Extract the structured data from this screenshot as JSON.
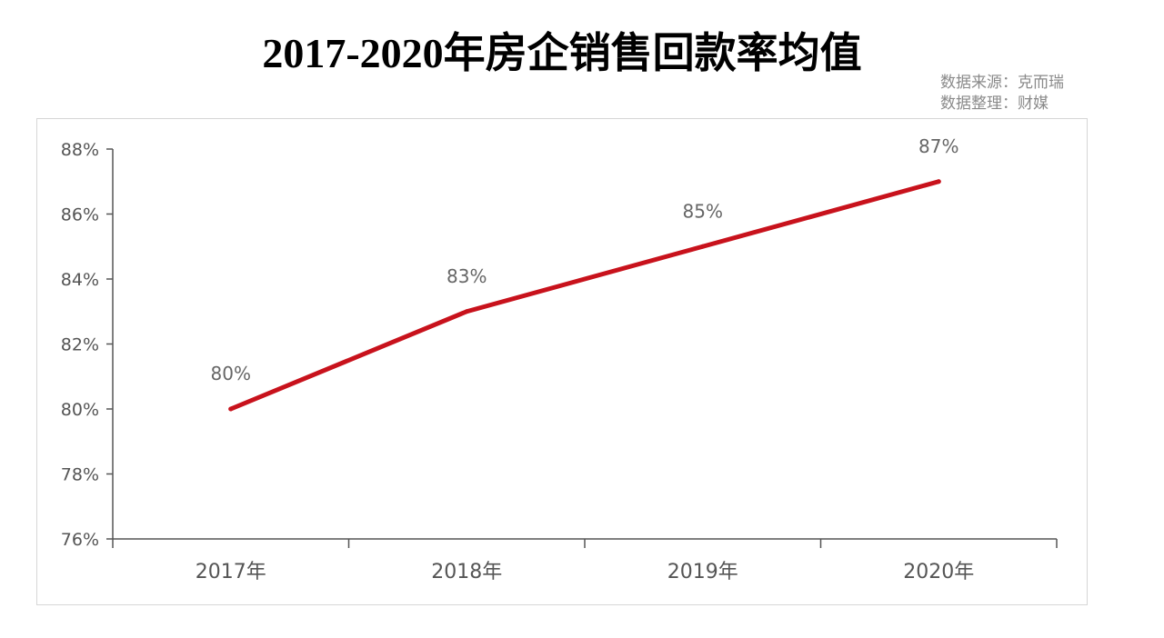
{
  "title": "2017-2020年房企销售回款率均值",
  "source_lines": [
    "数据来源：克而瑞",
    "数据整理：财媒"
  ],
  "colors": {
    "line": "#c8121c",
    "axis": "#555555"
  },
  "chart_data": {
    "type": "line",
    "title": "2017-2020年房企销售回款率均值",
    "xlabel": "",
    "ylabel": "",
    "categories": [
      "2017年",
      "2018年",
      "2019年",
      "2020年"
    ],
    "values": [
      80,
      83,
      85,
      87
    ],
    "data_labels": [
      "80%",
      "83%",
      "85%",
      "87%"
    ],
    "y_ticks": [
      76,
      78,
      80,
      82,
      84,
      86,
      88
    ],
    "y_tick_labels": [
      "76%",
      "78%",
      "80%",
      "82%",
      "84%",
      "86%",
      "88%"
    ],
    "ylim": [
      76,
      88
    ],
    "grid": false,
    "legend": "none"
  }
}
